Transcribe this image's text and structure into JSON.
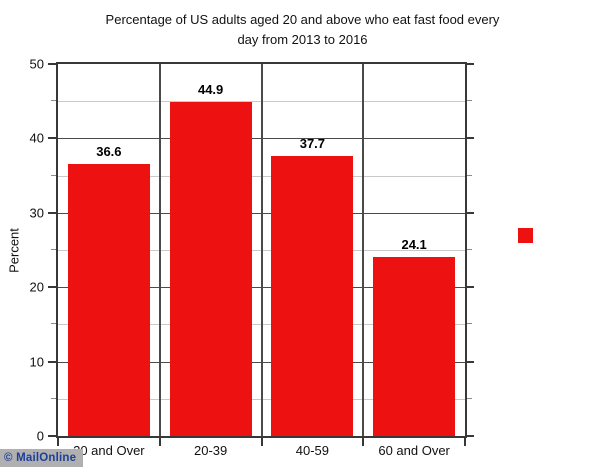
{
  "chart_data": {
    "type": "bar",
    "title": "Percentage of US adults aged 20 and above who eat fast food every day from 2013 to 2016",
    "title_lines": [
      "Percentage of US adults aged 20 and above who eat fast food every",
      "day from 2013 to 2016"
    ],
    "ylabel": "Percent",
    "xlabel": "",
    "categories": [
      "20 and Over",
      "20-39",
      "40-59",
      "60 and Over"
    ],
    "values": [
      36.6,
      44.9,
      37.7,
      24.1
    ],
    "value_labels": [
      "36.6",
      "44.9",
      "37.7",
      "24.1"
    ],
    "ylim": [
      0,
      50
    ],
    "ytick_major_step": 10,
    "ytick_minor_step": 5,
    "yticklabels": [
      "0",
      "10",
      "20",
      "30",
      "40",
      "50"
    ],
    "grid": "horizontal major and minor gridlines, vertical category dividers, full plot border",
    "legend_position": "right-middle, marker only, no label",
    "bar_color": "#ee1111",
    "legend_marker_color": "#ee1111",
    "gridline_major_color": "#4a4a4a",
    "gridline_minor_color": "#c9c9c9",
    "axis_color": "#383838"
  },
  "watermark": {
    "text": "© MailOnline",
    "text_color": "#1e3f99",
    "background_color": "#b0b0b0"
  }
}
